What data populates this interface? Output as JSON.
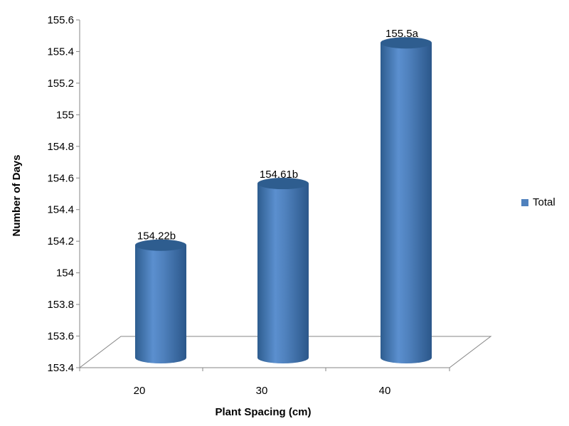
{
  "chart_data": {
    "type": "bar",
    "categories": [
      "20",
      "30",
      "40"
    ],
    "series": [
      {
        "name": "Total",
        "values": [
          154.22,
          154.61,
          155.5
        ]
      }
    ],
    "data_labels": [
      "154.22b",
      "154.61b",
      "155.5a"
    ],
    "xlabel": "Plant Spacing (cm)",
    "ylabel": "Number of Days",
    "ylim": [
      153.4,
      155.6
    ],
    "y_ticks": [
      "153.4",
      "153.6",
      "153.8",
      "154",
      "154.2",
      "154.4",
      "154.6",
      "154.8",
      "155",
      "155.2",
      "155.4",
      "155.6"
    ],
    "grid": false,
    "legend_position": "right",
    "bar_shape": "cylinder",
    "colors": {
      "bar": "#4F81BD",
      "bar_dark": "#2E5D8F",
      "bar_light": "#6E9BD3",
      "axis": "#868686"
    }
  }
}
